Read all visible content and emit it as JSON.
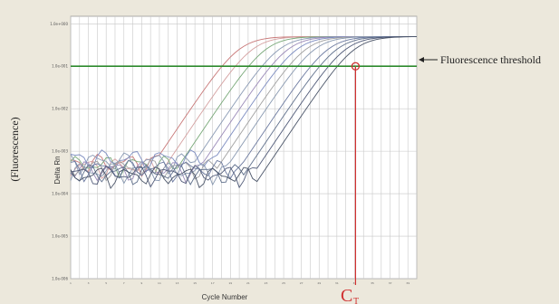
{
  "chart_data": {
    "type": "line",
    "title": "",
    "xlabel": "Cycle Number",
    "ylabel": "Delta Rn",
    "outer_ylabel": "(Fluorescence)",
    "scale_y": "log",
    "ylim": [
      1e-06,
      1.5
    ],
    "xlim": [
      1,
      40
    ],
    "y_ticks": [
      "1.0e+000",
      "1.0e-001",
      "1.0e-002",
      "1.0e-003",
      "1.0e-004",
      "1.0e-005",
      "1.0e-006"
    ],
    "grid": true,
    "threshold": {
      "value": 0.1,
      "label": "Fluorescence threshold",
      "color": "#2d8a2d"
    },
    "ct_marker": {
      "label": "C",
      "subscript": "T",
      "x": 33.1,
      "y": 0.1,
      "color": "#d03030"
    },
    "series": [
      {
        "color": "#c87878",
        "midpoint": 20.0,
        "baseline": 0.00055
      },
      {
        "color": "#d4a0a0",
        "midpoint": 21.5,
        "baseline": 0.00045
      },
      {
        "color": "#78a878",
        "midpoint": 23.0,
        "baseline": 0.0005
      },
      {
        "color": "#8a9ab4",
        "midpoint": 24.5,
        "baseline": 0.0006
      },
      {
        "color": "#9a8ab8",
        "midpoint": 25.5,
        "baseline": 0.00038
      },
      {
        "color": "#7c8cc0",
        "midpoint": 26.5,
        "baseline": 0.0007
      },
      {
        "color": "#a0a0a0",
        "midpoint": 27.5,
        "baseline": 0.00042
      },
      {
        "color": "#8898b0",
        "midpoint": 28.5,
        "baseline": 0.00035
      },
      {
        "color": "#6c7aa0",
        "midpoint": 30.0,
        "baseline": 0.0004
      },
      {
        "color": "#60708c",
        "midpoint": 31.0,
        "baseline": 0.00032
      },
      {
        "color": "#505a78",
        "midpoint": 32.0,
        "baseline": 0.0003
      },
      {
        "color": "#4a5468",
        "midpoint": 33.0,
        "baseline": 0.00028
      }
    ]
  },
  "colors": {
    "background": "#ece8dc",
    "plot_bg": "#ffffff",
    "grid": "#c8c8c8",
    "arrow": "#222222"
  }
}
